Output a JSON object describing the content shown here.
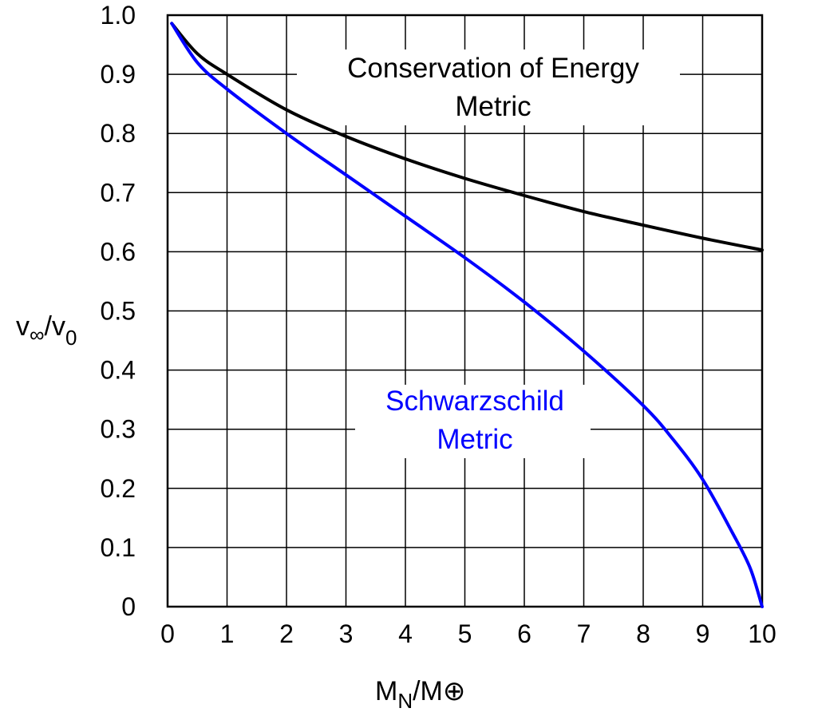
{
  "chart_data": {
    "type": "line",
    "title": "",
    "xlabel": {
      "main": "M",
      "sub": "N",
      "rest": "/M⊕"
    },
    "ylabel": {
      "main": "v",
      "sub1": "∞",
      "mid": "/v",
      "sub2": "0"
    },
    "xlim": [
      0,
      10
    ],
    "ylim": [
      0,
      1.0
    ],
    "grid": true,
    "xticks": [
      "0",
      "1",
      "2",
      "3",
      "4",
      "5",
      "6",
      "7",
      "8",
      "9",
      "10"
    ],
    "yticks": [
      "0",
      "0.1",
      "0.2",
      "0.3",
      "0.4",
      "0.5",
      "0.6",
      "0.7",
      "0.8",
      "0.9",
      "1.0"
    ],
    "series": [
      {
        "name": "Conservation of Energy Metric",
        "label_lines": [
          "Conservation of Energy",
          "Metric"
        ],
        "color": "#000000",
        "x": [
          0.07,
          0.5,
          1,
          2,
          3,
          4,
          5,
          6,
          7,
          8,
          9,
          10
        ],
        "y": [
          0.986,
          0.935,
          0.9,
          0.84,
          0.795,
          0.757,
          0.724,
          0.695,
          0.668,
          0.645,
          0.623,
          0.603
        ]
      },
      {
        "name": "Schwarzschild Metric",
        "label_lines": [
          "Schwarzschild",
          "Metric"
        ],
        "color": "#0000ff",
        "x": [
          0.07,
          0.5,
          1,
          2,
          3,
          4,
          5,
          6,
          7,
          8,
          8.5,
          9,
          9.5,
          9.8,
          10
        ],
        "y": [
          0.986,
          0.92,
          0.875,
          0.8,
          0.73,
          0.66,
          0.59,
          0.515,
          0.432,
          0.34,
          0.283,
          0.215,
          0.125,
          0.065,
          0.0
        ]
      }
    ]
  }
}
